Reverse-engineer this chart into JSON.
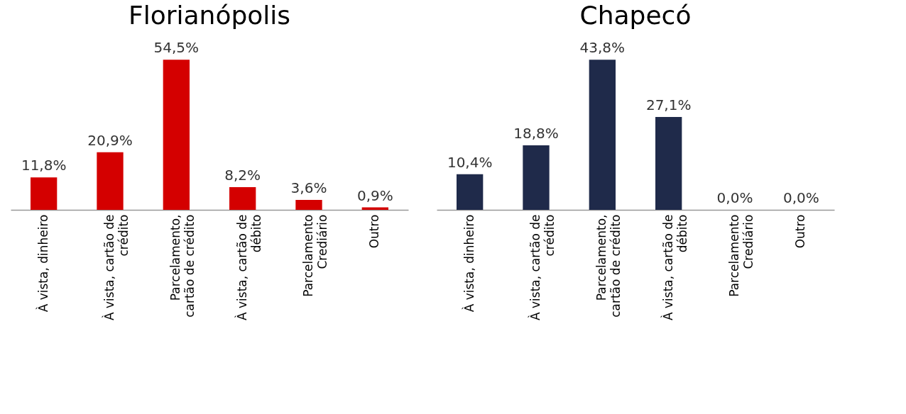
{
  "chart_data": [
    {
      "type": "bar",
      "title": "Florianópolis",
      "categories": [
        "À vista, dinheiro",
        "À vista, cartão de\ncrédito",
        "Parcelamento,\ncartão de crédito",
        "À vista, cartão de\ndébito",
        "Parcelamento\nCrediário",
        "Outro"
      ],
      "values": [
        11.8,
        20.9,
        54.5,
        8.2,
        3.6,
        0.9
      ],
      "value_labels": [
        "11,8%",
        "20,9%",
        "54,5%",
        "8,2%",
        "3,6%",
        "0,9%"
      ],
      "color": "#d40000",
      "grid": false
    },
    {
      "type": "bar",
      "title": "Chapecó",
      "categories": [
        "À vista, dinheiro",
        "À vista, cartão de\ncrédito",
        "Parcelamento,\ncartão de crédito",
        "À vista, cartão de\ndébito",
        "Parcelamento\nCrediário",
        "Outro"
      ],
      "values": [
        10.4,
        18.8,
        43.8,
        27.1,
        0.0,
        0.0
      ],
      "value_labels": [
        "10,4%",
        "18,8%",
        "43,8%",
        "27,1%",
        "0,0%",
        "0,0%"
      ],
      "color": "#1f2a4a",
      "grid": false
    }
  ]
}
